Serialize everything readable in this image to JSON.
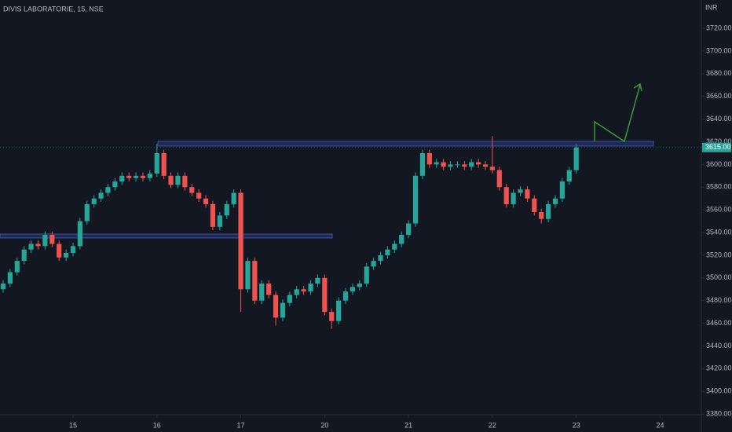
{
  "chart_data": {
    "type": "candlestick",
    "title": "DIVIS LABORATORIE, 15, NSE",
    "currency": "INR",
    "up_color": "#26a69a",
    "down_color": "#ef5350",
    "open": [
      3490,
      3495,
      3505,
      3515,
      3525,
      3530,
      3528,
      3538,
      3530,
      3518,
      3522,
      3528,
      3550,
      3565,
      3570,
      3575,
      3580,
      3585,
      3590,
      3588,
      3590,
      3588,
      3592,
      3610,
      3590,
      3582,
      3590,
      3580,
      3575,
      3570,
      3565,
      3545,
      3555,
      3565,
      3575,
      3490,
      3515,
      3480,
      3495,
      3485,
      3465,
      3478,
      3485,
      3490,
      3488,
      3495,
      3500,
      3470,
      3462,
      3480,
      3488,
      3492,
      3495,
      3510,
      3515,
      3520,
      3525,
      3530,
      3538,
      3548,
      3590,
      3610,
      3600,
      3602,
      3598,
      3600,
      3600,
      3598,
      3602,
      3600,
      3598,
      3595,
      3580,
      3565,
      3575,
      3578,
      3570,
      3558,
      3552,
      3565,
      3570,
      3585,
      3595
    ],
    "high": [
      3498,
      3508,
      3518,
      3528,
      3533,
      3533,
      3541,
      3541,
      3533,
      3525,
      3531,
      3553,
      3568,
      3573,
      3578,
      3583,
      3588,
      3593,
      3593,
      3593,
      3593,
      3595,
      3618,
      3613,
      3593,
      3593,
      3593,
      3583,
      3578,
      3573,
      3568,
      3558,
      3568,
      3578,
      3578,
      3518,
      3518,
      3498,
      3498,
      3488,
      3481,
      3488,
      3493,
      3493,
      3498,
      3503,
      3503,
      3473,
      3483,
      3491,
      3495,
      3498,
      3513,
      3518,
      3523,
      3528,
      3533,
      3541,
      3551,
      3593,
      3613,
      3613,
      3605,
      3605,
      3603,
      3603,
      3603,
      3605,
      3605,
      3603,
      3625,
      3598,
      3583,
      3578,
      3581,
      3581,
      3573,
      3561,
      3568,
      3573,
      3588,
      3598,
      3618
    ],
    "low": [
      3487,
      3492,
      3502,
      3512,
      3522,
      3525,
      3525,
      3527,
      3515,
      3515,
      3519,
      3525,
      3547,
      3562,
      3567,
      3572,
      3577,
      3582,
      3585,
      3585,
      3585,
      3585,
      3589,
      3587,
      3579,
      3579,
      3577,
      3572,
      3567,
      3562,
      3542,
      3542,
      3552,
      3562,
      3470,
      3487,
      3477,
      3477,
      3482,
      3458,
      3462,
      3475,
      3482,
      3485,
      3485,
      3492,
      3467,
      3455,
      3459,
      3477,
      3485,
      3489,
      3492,
      3507,
      3512,
      3517,
      3522,
      3527,
      3535,
      3545,
      3587,
      3597,
      3597,
      3595,
      3595,
      3597,
      3595,
      3595,
      3597,
      3595,
      3592,
      3577,
      3562,
      3562,
      3572,
      3567,
      3555,
      3548,
      3549,
      3562,
      3567,
      3582,
      3592
    ],
    "close": [
      3495,
      3505,
      3515,
      3525,
      3530,
      3528,
      3538,
      3530,
      3518,
      3522,
      3528,
      3550,
      3565,
      3570,
      3575,
      3580,
      3585,
      3590,
      3588,
      3590,
      3588,
      3592,
      3610,
      3590,
      3582,
      3590,
      3580,
      3575,
      3570,
      3565,
      3545,
      3555,
      3565,
      3575,
      3490,
      3515,
      3480,
      3495,
      3485,
      3465,
      3478,
      3485,
      3490,
      3488,
      3495,
      3500,
      3470,
      3462,
      3480,
      3488,
      3492,
      3495,
      3510,
      3515,
      3520,
      3525,
      3530,
      3538,
      3548,
      3590,
      3610,
      3600,
      3602,
      3598,
      3600,
      3600,
      3598,
      3602,
      3600,
      3598,
      3595,
      3580,
      3565,
      3575,
      3578,
      3570,
      3558,
      3552,
      3565,
      3570,
      3585,
      3595,
      3615
    ],
    "xlim": [
      -0.45,
      99.9
    ],
    "xticks": [
      {
        "value": 10,
        "label": "15"
      },
      {
        "value": 22,
        "label": "16"
      },
      {
        "value": 34,
        "label": "17"
      },
      {
        "value": 46,
        "label": "20"
      },
      {
        "value": 58,
        "label": "21"
      },
      {
        "value": 70,
        "label": "22"
      },
      {
        "value": 82,
        "label": "23"
      },
      {
        "value": 94,
        "label": "24"
      }
    ],
    "ylim": [
      3378,
      3745
    ],
    "yticks": [
      {
        "value": 3380,
        "label": "3380.00"
      },
      {
        "value": 3400,
        "label": "3400.00"
      },
      {
        "value": 3420,
        "label": "3420.00"
      },
      {
        "value": 3440,
        "label": "3440.00"
      },
      {
        "value": 3460,
        "label": "3460.00"
      },
      {
        "value": 3480,
        "label": "3480.00"
      },
      {
        "value": 3500,
        "label": "3500.00"
      },
      {
        "value": 3520,
        "label": "3520.00"
      },
      {
        "value": 3540,
        "label": "3540.00"
      },
      {
        "value": 3560,
        "label": "3560.00"
      },
      {
        "value": 3580,
        "label": "3580.00"
      },
      {
        "value": 3600,
        "label": "3600.00"
      },
      {
        "value": 3620,
        "label": "3620.00"
      },
      {
        "value": 3640,
        "label": "3640.00"
      },
      {
        "value": 3660,
        "label": "3660.00"
      },
      {
        "value": 3680,
        "label": "3680.00"
      },
      {
        "value": 3700,
        "label": "3700.00"
      },
      {
        "value": 3720,
        "label": "3720.00"
      }
    ],
    "last_price": {
      "value": 3615,
      "label": "3615.00"
    }
  }
}
